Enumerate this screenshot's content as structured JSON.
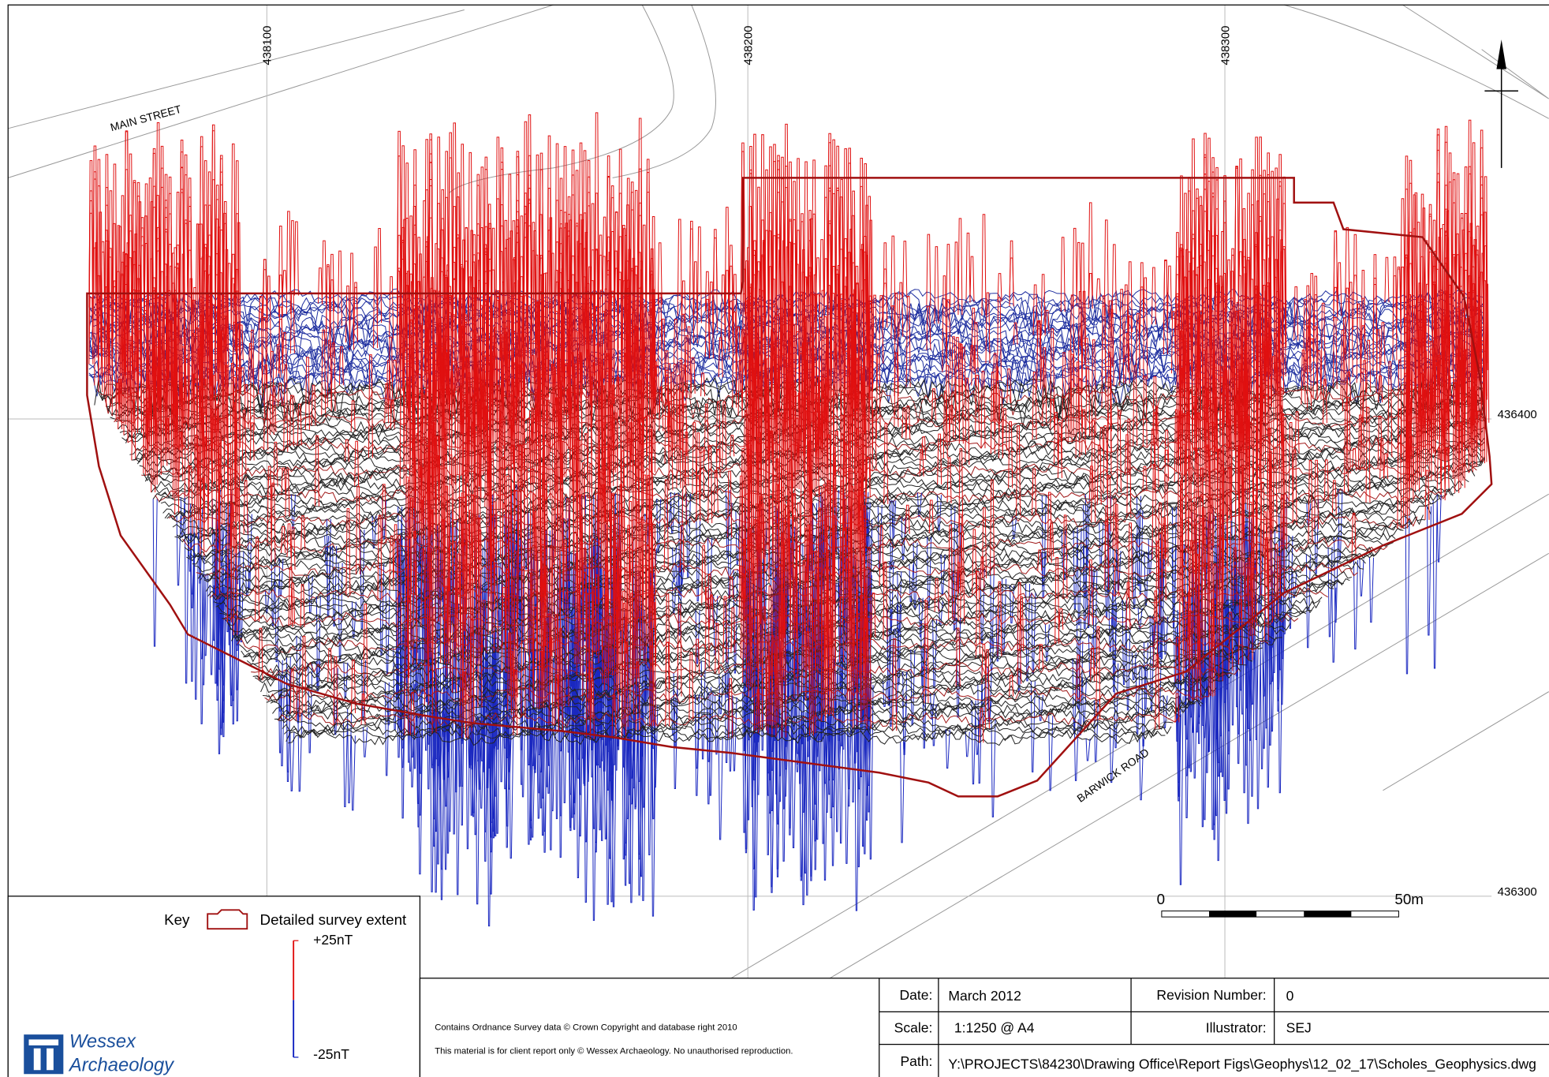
{
  "grid": {
    "eastings": [
      "438100",
      "438200",
      "438300"
    ],
    "northings": [
      "436400",
      "436300"
    ]
  },
  "streets": [
    "MAIN STREET",
    "BARWICK ROAD"
  ],
  "key": {
    "title": "Key",
    "extent": "Detailed survey extent",
    "max": "+25nT",
    "min": "-25nT"
  },
  "scale_bar": {
    "start": "0",
    "end": "50m"
  },
  "logo": {
    "line1": "Wessex",
    "line2": "Archaeology"
  },
  "notes": [
    "Contains Ordnance Survey data © Crown Copyright and database right 2010",
    "This material is for client report only © Wessex Archaeology. No unauthorised reproduction."
  ],
  "title_block": {
    "date": {
      "label": "Date:",
      "value": "March 2012"
    },
    "revision": {
      "label": "Revision Number:",
      "value": "0"
    },
    "scale": {
      "label": "Scale:",
      "value": "1:1250 @ A4"
    },
    "illustrator": {
      "label": "Illustrator:",
      "value": "SEJ"
    },
    "path": {
      "label": "Path:",
      "value": "Y:\\PROJECTS\\84230\\Drawing Office\\Report Figs\\Geophys\\12_02_17\\Scholes_Geophysics.dwg"
    }
  }
}
